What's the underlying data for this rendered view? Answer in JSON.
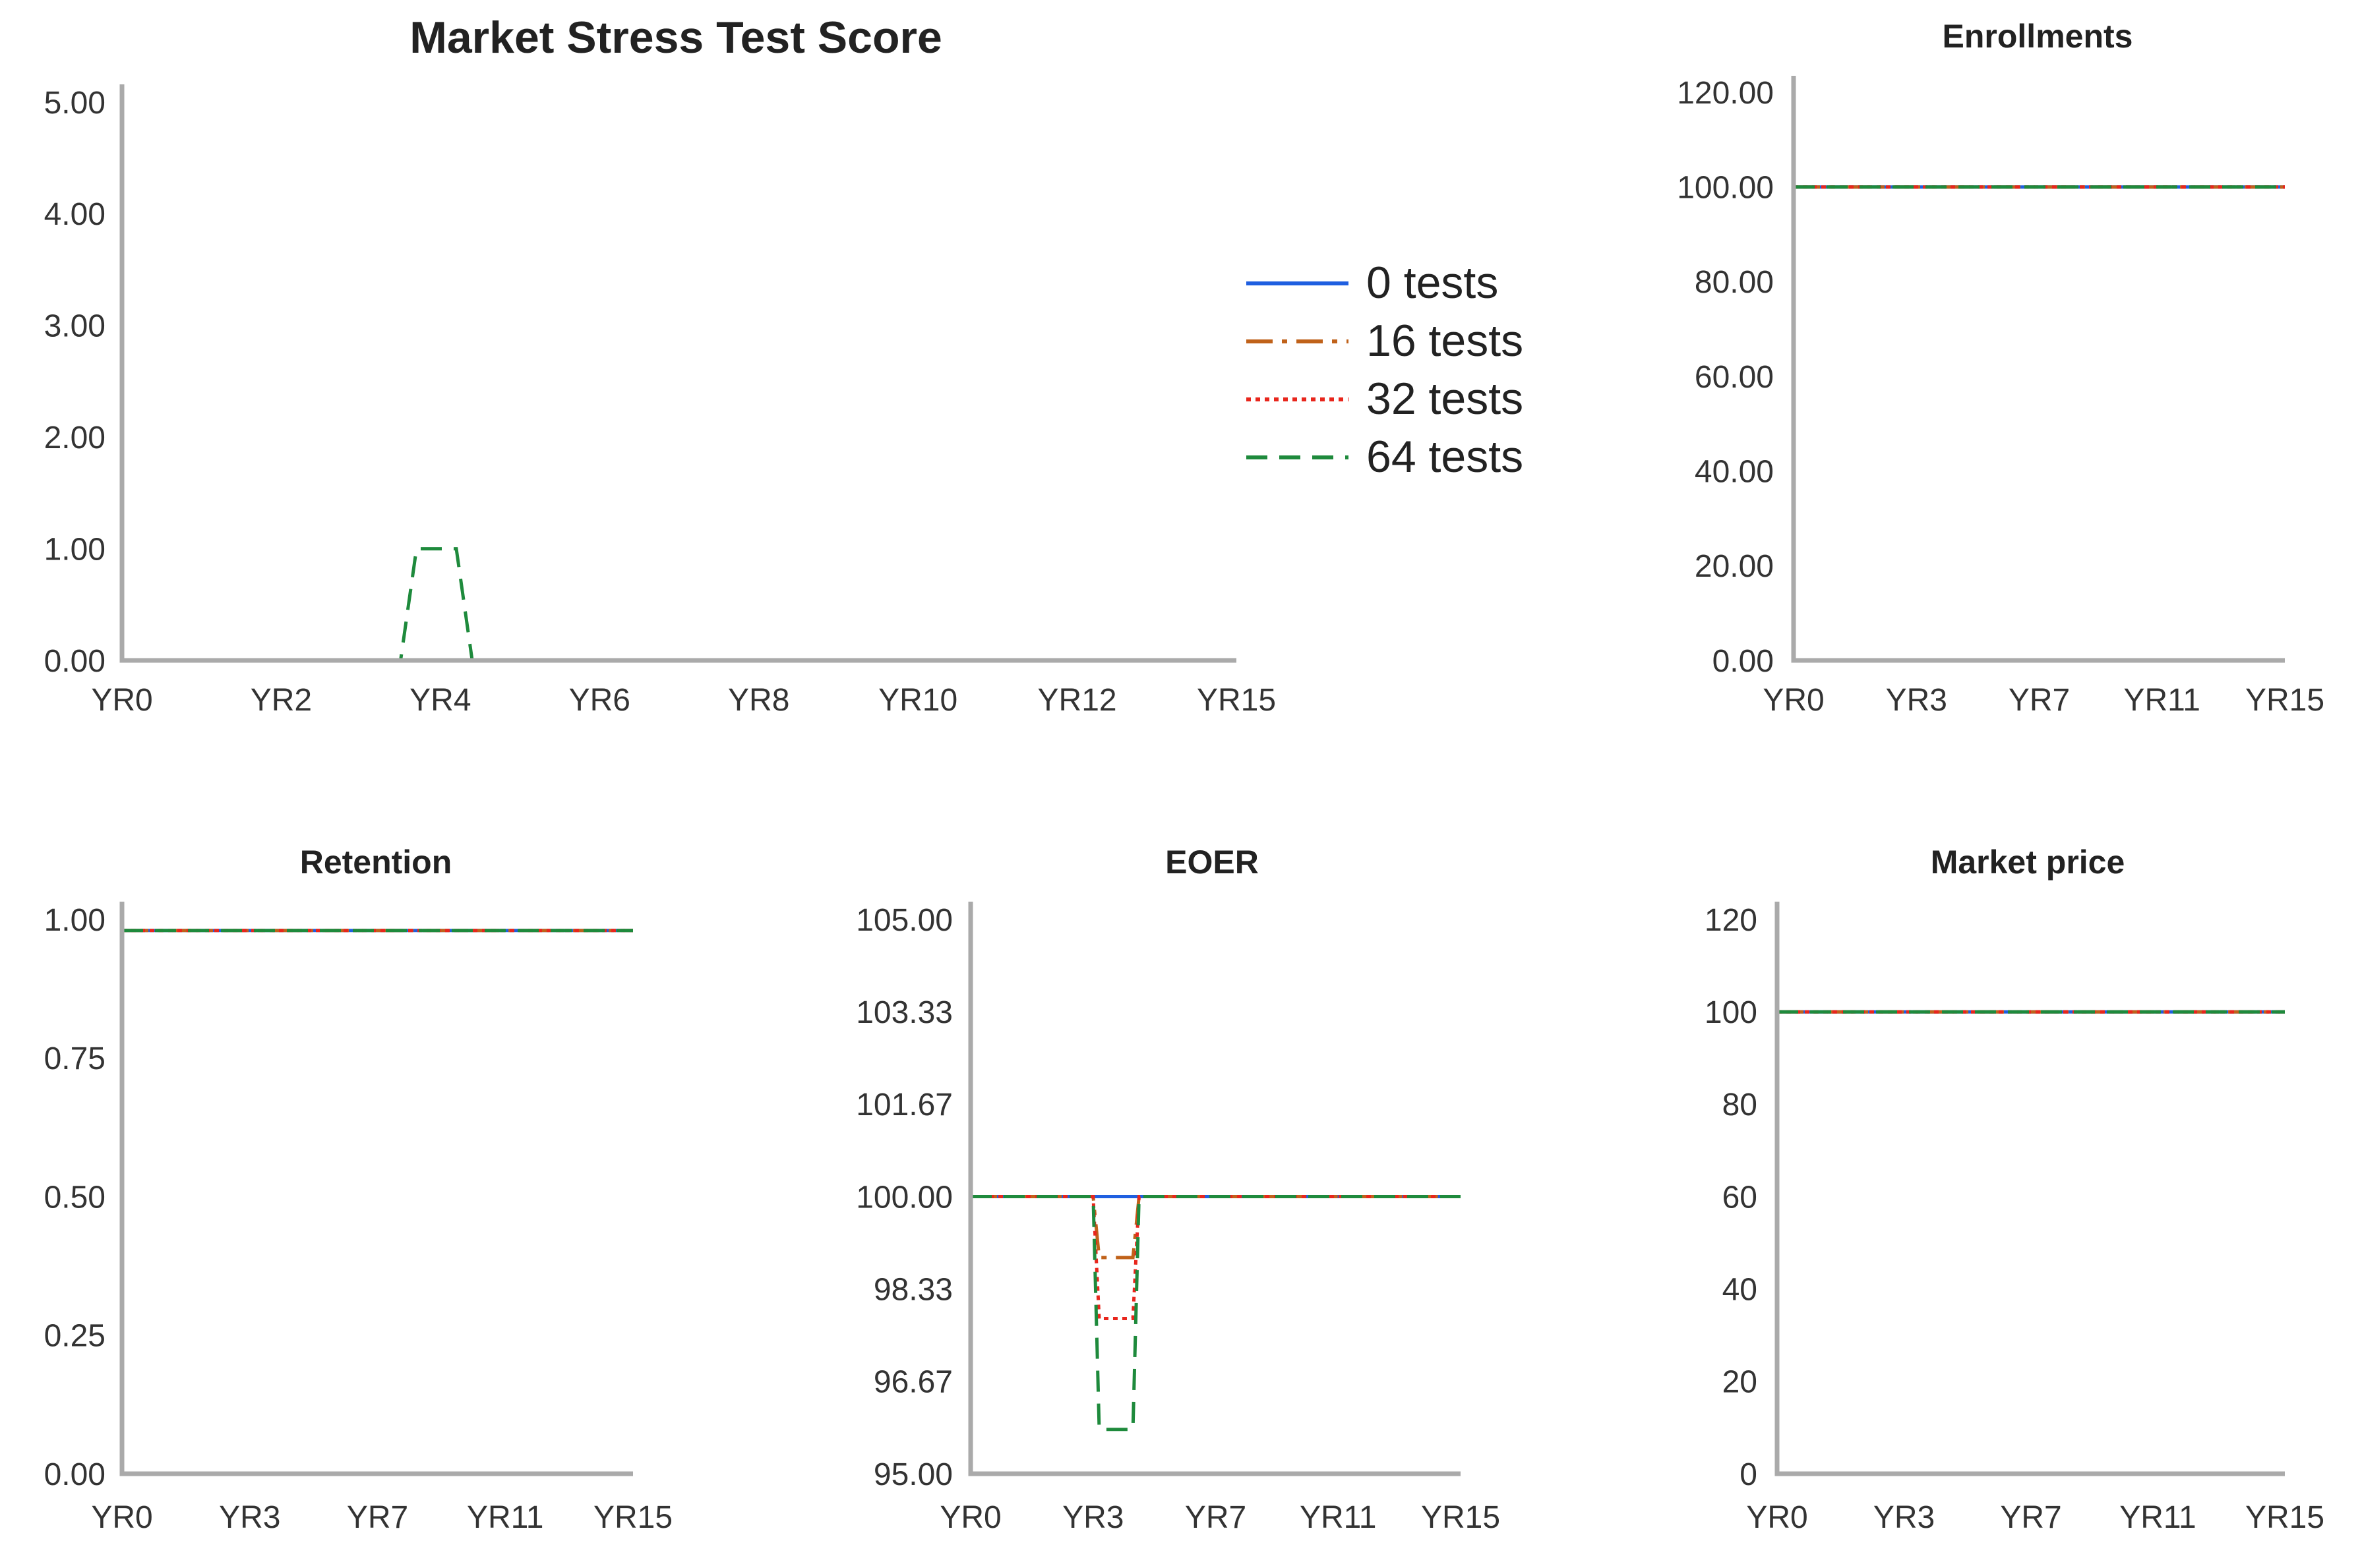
{
  "legend": {
    "entries": [
      {
        "label": "0 tests",
        "color": "#1f5fe0",
        "dash": "solid"
      },
      {
        "label": "16 tests",
        "color": "#c0621a",
        "dash": "dashdot"
      },
      {
        "label": "32 tests",
        "color": "#e8261c",
        "dash": "dotted"
      },
      {
        "label": "64 tests",
        "color": "#1e8a3c",
        "dash": "dashed"
      }
    ]
  },
  "chart_data": [
    {
      "id": "stress",
      "type": "line",
      "title": "Market Stress Test Score",
      "xlabel": "",
      "ylabel": "",
      "x_ticks": [
        "YR0",
        "YR2",
        "YR4",
        "YR6",
        "YR8",
        "YR10",
        "YR12",
        "YR15"
      ],
      "y_ticks": [
        "5.00",
        "4.00",
        "3.00",
        "2.00",
        "1.00",
        "0.00"
      ],
      "xlim": [
        0,
        14
      ],
      "ylim": [
        0,
        5
      ],
      "series": [
        {
          "name": "0 tests",
          "points": [
            [
              0,
              0
            ],
            [
              14,
              0
            ]
          ]
        },
        {
          "name": "16 tests",
          "points": [
            [
              0,
              0
            ],
            [
              14,
              0
            ]
          ]
        },
        {
          "name": "32 tests",
          "points": [
            [
              0,
              0
            ],
            [
              14,
              0
            ]
          ]
        },
        {
          "name": "64 tests",
          "points": [
            [
              0,
              0
            ],
            [
              3.5,
              0
            ],
            [
              3.7,
              1
            ],
            [
              4.2,
              1
            ],
            [
              4.4,
              0
            ],
            [
              14,
              0
            ]
          ]
        }
      ]
    },
    {
      "id": "enroll",
      "type": "line",
      "title": "Enrollments",
      "xlabel": "",
      "ylabel": "",
      "x_ticks": [
        "YR0",
        "YR3",
        "YR7",
        "YR11",
        "YR15"
      ],
      "y_ticks": [
        "120.00",
        "100.00",
        "80.00",
        "60.00",
        "40.00",
        "20.00",
        "0.00"
      ],
      "xlim": [
        0,
        16
      ],
      "ylim": [
        0,
        120
      ],
      "series": [
        {
          "name": "0 tests",
          "points": [
            [
              0,
              100
            ],
            [
              16,
              100
            ]
          ]
        },
        {
          "name": "16 tests",
          "points": [
            [
              0,
              100
            ],
            [
              16,
              100
            ]
          ]
        },
        {
          "name": "32 tests",
          "points": [
            [
              0,
              100
            ],
            [
              16,
              100
            ]
          ]
        },
        {
          "name": "64 tests",
          "points": [
            [
              0,
              100
            ],
            [
              16,
              100
            ]
          ]
        }
      ]
    },
    {
      "id": "retention",
      "type": "line",
      "title": "Retention",
      "xlabel": "",
      "ylabel": "",
      "x_ticks": [
        "YR0",
        "YR3",
        "YR7",
        "YR11",
        "YR15"
      ],
      "y_ticks": [
        "1.00",
        "0.75",
        "0.50",
        "0.25",
        "0.00"
      ],
      "xlim": [
        0,
        16
      ],
      "ylim": [
        0,
        1
      ],
      "series": [
        {
          "name": "0 tests",
          "points": [
            [
              0,
              0.98
            ],
            [
              16,
              0.98
            ]
          ]
        },
        {
          "name": "16 tests",
          "points": [
            [
              0,
              0.98
            ],
            [
              16,
              0.98
            ]
          ]
        },
        {
          "name": "32 tests",
          "points": [
            [
              0,
              0.98
            ],
            [
              16,
              0.98
            ]
          ]
        },
        {
          "name": "64 tests",
          "points": [
            [
              0,
              0.98
            ],
            [
              16,
              0.98
            ]
          ]
        }
      ]
    },
    {
      "id": "eoer",
      "type": "line",
      "title": "EOER",
      "xlabel": "",
      "ylabel": "",
      "x_ticks": [
        "YR0",
        "YR3",
        "YR7",
        "YR11",
        "YR15"
      ],
      "y_ticks": [
        "105.00",
        "103.33",
        "101.67",
        "100.00",
        "98.33",
        "96.67",
        "95.00"
      ],
      "xlim": [
        0,
        16
      ],
      "ylim": [
        95,
        105
      ],
      "series": [
        {
          "name": "0 tests",
          "points": [
            [
              0,
              100
            ],
            [
              16,
              100
            ]
          ]
        },
        {
          "name": "16 tests",
          "points": [
            [
              0,
              100
            ],
            [
              4,
              100
            ],
            [
              4.2,
              98.9
            ],
            [
              5.3,
              98.9
            ],
            [
              5.5,
              100
            ],
            [
              16,
              100
            ]
          ]
        },
        {
          "name": "32 tests",
          "points": [
            [
              0,
              100
            ],
            [
              4,
              100
            ],
            [
              4.2,
              97.8
            ],
            [
              5.3,
              97.8
            ],
            [
              5.5,
              100
            ],
            [
              16,
              100
            ]
          ]
        },
        {
          "name": "64 tests",
          "points": [
            [
              0,
              100
            ],
            [
              4,
              100
            ],
            [
              4.2,
              95.8
            ],
            [
              5.3,
              95.8
            ],
            [
              5.5,
              100
            ],
            [
              16,
              100
            ]
          ]
        }
      ]
    },
    {
      "id": "price",
      "type": "line",
      "title": "Market price",
      "xlabel": "",
      "ylabel": "",
      "x_ticks": [
        "YR0",
        "YR3",
        "YR7",
        "YR11",
        "YR15"
      ],
      "y_ticks": [
        "120",
        "100",
        "80",
        "60",
        "40",
        "20",
        "0"
      ],
      "xlim": [
        0,
        16
      ],
      "ylim": [
        0,
        120
      ],
      "series": [
        {
          "name": "0 tests",
          "points": [
            [
              0,
              100
            ],
            [
              16,
              100
            ]
          ]
        },
        {
          "name": "16 tests",
          "points": [
            [
              0,
              100
            ],
            [
              16,
              100
            ]
          ]
        },
        {
          "name": "32 tests",
          "points": [
            [
              0,
              100
            ],
            [
              16,
              100
            ]
          ]
        },
        {
          "name": "64 tests",
          "points": [
            [
              0,
              100
            ],
            [
              16,
              100
            ]
          ]
        }
      ]
    }
  ]
}
